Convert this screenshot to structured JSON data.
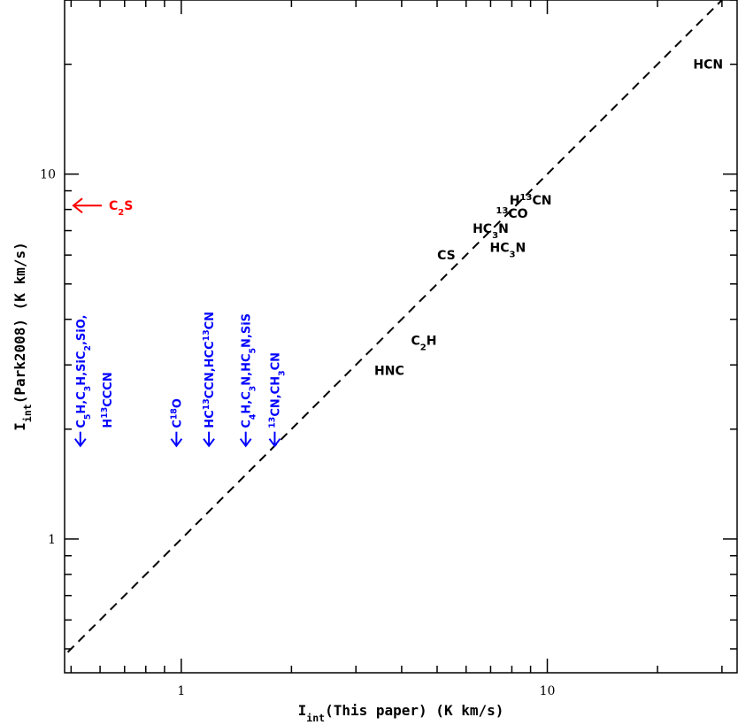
{
  "chart_data": {
    "type": "scatter",
    "xscale": "log",
    "yscale": "log",
    "xlim": [
      0.48,
      33
    ],
    "ylim": [
      0.43,
      30
    ],
    "grid": false,
    "xticks": {
      "major": [
        1,
        10
      ],
      "labels": [
        "1",
        "10"
      ]
    },
    "yticks": {
      "major": [
        1,
        10
      ],
      "labels": [
        "1",
        "10"
      ]
    },
    "xlabel": {
      "main": "I",
      "sub": "int",
      "rest": "(This paper) (K km/s)"
    },
    "ylabel": {
      "main": "I",
      "sub": "int",
      "rest": "(Park2008) (K km/s)"
    },
    "reference_line": {
      "style": "dashed",
      "relation": "y = x"
    },
    "colors": {
      "detection": "#000000",
      "upper_limit": "#0000ff",
      "park_only": "#ff0000"
    },
    "detections": [
      {
        "species": "HCN",
        "parts": [
          [
            "HCN",
            ""
          ]
        ],
        "x": 27.5,
        "y": 20.0
      },
      {
        "species": "H13CN",
        "parts": [
          [
            "H",
            ""
          ],
          [
            "13",
            "sup"
          ],
          [
            "CN",
            ""
          ]
        ],
        "x": 9.0,
        "y": 8.5
      },
      {
        "species": "13CO",
        "parts": [
          [
            "13",
            "sup"
          ],
          [
            "CO",
            ""
          ]
        ],
        "x": 8.0,
        "y": 7.8
      },
      {
        "species": "HC3N",
        "parts": [
          [
            "HC",
            ""
          ],
          [
            "3",
            "sub"
          ],
          [
            "N",
            ""
          ]
        ],
        "x": 7.0,
        "y": 7.1
      },
      {
        "species": "HC3N",
        "parts": [
          [
            "HC",
            ""
          ],
          [
            "3",
            "sub"
          ],
          [
            "N",
            ""
          ]
        ],
        "x": 7.8,
        "y": 6.3
      },
      {
        "species": "CS",
        "parts": [
          [
            "CS",
            ""
          ]
        ],
        "x": 5.3,
        "y": 6.0
      },
      {
        "species": "C2H",
        "parts": [
          [
            "C",
            ""
          ],
          [
            "2",
            "sub"
          ],
          [
            "H",
            ""
          ]
        ],
        "x": 4.6,
        "y": 3.5
      },
      {
        "species": "HNC",
        "parts": [
          [
            "HNC",
            ""
          ]
        ],
        "x": 3.7,
        "y": 2.9
      }
    ],
    "upper_limits": [
      {
        "x": 0.53,
        "y_arrow_bottom": 1.8,
        "lines": [
          [
            [
              "C",
              ""
            ],
            [
              "5",
              "sub"
            ],
            [
              "H,C",
              ""
            ],
            [
              "3",
              "sub"
            ],
            [
              "H,SiC",
              ""
            ],
            [
              "2",
              "sub"
            ],
            [
              ",SiO,",
              ""
            ]
          ],
          [
            [
              "H",
              ""
            ],
            [
              "13",
              "sup"
            ],
            [
              "CCCN",
              ""
            ]
          ]
        ]
      },
      {
        "x": 0.97,
        "y_arrow_bottom": 1.8,
        "lines": [
          [
            [
              "C",
              ""
            ],
            [
              "18",
              "sup"
            ],
            [
              "O",
              ""
            ]
          ]
        ]
      },
      {
        "x": 1.19,
        "y_arrow_bottom": 1.8,
        "lines": [
          [
            [
              "HC",
              ""
            ],
            [
              "13",
              "sup"
            ],
            [
              "CCN,HCC",
              ""
            ],
            [
              "13",
              "sup"
            ],
            [
              "CN",
              ""
            ]
          ]
        ]
      },
      {
        "x": 1.5,
        "y_arrow_bottom": 1.8,
        "lines": [
          [
            [
              "C",
              ""
            ],
            [
              "4",
              "sub"
            ],
            [
              "H,C",
              ""
            ],
            [
              "3",
              "sub"
            ],
            [
              "N,HC",
              ""
            ],
            [
              "5",
              "sub"
            ],
            [
              "N,SiS",
              ""
            ]
          ]
        ]
      },
      {
        "x": 1.8,
        "y_arrow_bottom": 1.8,
        "lines": [
          [
            [
              "13",
              "sup"
            ],
            [
              "CN,CH",
              ""
            ],
            [
              "3",
              "sub"
            ],
            [
              "CN",
              ""
            ]
          ]
        ]
      }
    ],
    "left_limits": [
      {
        "y": 8.2,
        "parts": [
          [
            "C",
            ""
          ],
          [
            "2",
            "sub"
          ],
          [
            "S",
            ""
          ]
        ]
      }
    ]
  }
}
